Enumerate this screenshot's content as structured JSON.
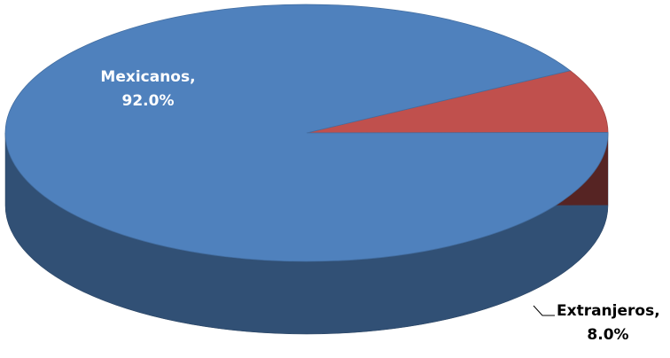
{
  "chart_data": {
    "type": "pie",
    "style": "3d",
    "title": "",
    "slices": [
      {
        "label": "Mexicanos",
        "value": 92.0,
        "display": "92.0%",
        "color": "#4f81bd"
      },
      {
        "label": "Extranjeros",
        "value": 8.0,
        "display": "8.0%",
        "color": "#c0504d"
      }
    ],
    "legend": "none"
  }
}
